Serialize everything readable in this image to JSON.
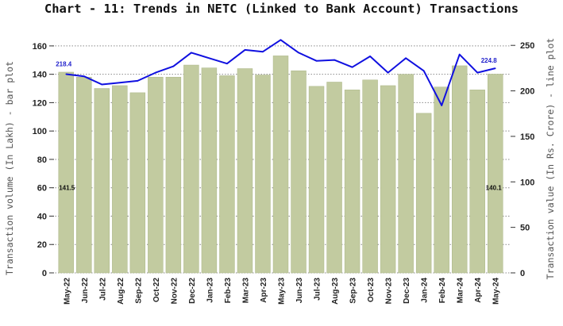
{
  "chart_data": {
    "type": "bar+line",
    "title": "Chart - 11: Trends in NETC (Linked to Bank Account) Transactions",
    "ylabel_left": "Transaction volume (In Lakh) - bar plot",
    "ylabel_right": "Transaction value (In Rs. Crore) - line plot",
    "categories": [
      "May-22",
      "Jun-22",
      "Jul-22",
      "Aug-22",
      "Sep-22",
      "Oct-22",
      "Nov-22",
      "Dec-22",
      "Jan-23",
      "Feb-23",
      "Mar-23",
      "Apr-23",
      "May-23",
      "Jun-23",
      "Jul-23",
      "Aug-23",
      "Sep-23",
      "Oct-23",
      "Nov-23",
      "Dec-23",
      "Jan-24",
      "Feb-24",
      "Mar-24",
      "Apr-24",
      "May-24"
    ],
    "left_axis": {
      "ylim": [
        0,
        170
      ],
      "ticks": [
        0,
        20,
        40,
        60,
        80,
        100,
        120,
        140,
        160
      ]
    },
    "right_axis": {
      "ylim": [
        0,
        265
      ],
      "ticks": [
        0,
        50,
        100,
        150,
        200,
        250
      ]
    },
    "series": [
      {
        "kind": "bar",
        "axis": "left",
        "values": [
          141.5,
          138,
          130,
          132,
          127,
          138,
          138,
          146.5,
          144.5,
          139,
          144,
          139.5,
          153,
          142.5,
          131.5,
          134.5,
          129,
          136,
          132,
          140,
          112.5,
          131,
          146,
          129,
          140.1
        ]
      },
      {
        "kind": "line",
        "axis": "right",
        "values": [
          218.4,
          216,
          207,
          209,
          211,
          220,
          227,
          242,
          236,
          230,
          245,
          243,
          256,
          242,
          233,
          234,
          226,
          238,
          220,
          236,
          222,
          184,
          240,
          220,
          224.8
        ]
      }
    ],
    "data_labels": {
      "bar_first": "141.5",
      "bar_last": "140.1",
      "line_first": "218.4",
      "line_last": "224.8"
    },
    "colors": {
      "bar": "#c2cba0",
      "bar_edge": "#aab585",
      "line": "#1010e0",
      "grid": "#8a8a8a"
    },
    "grid": true
  }
}
